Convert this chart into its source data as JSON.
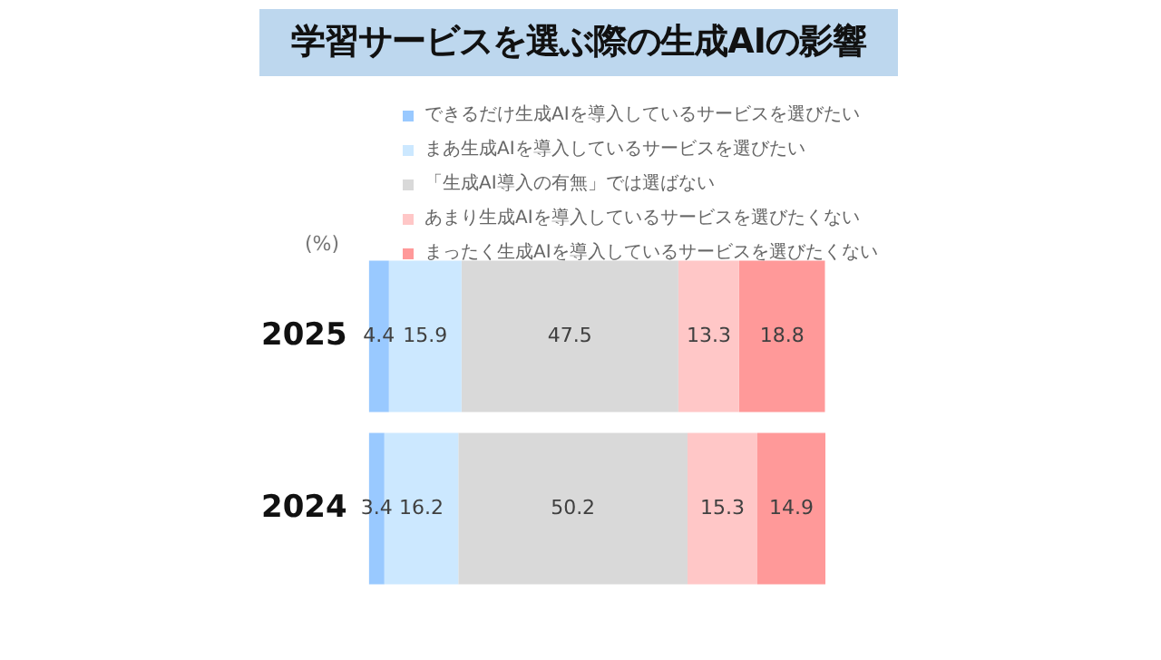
{
  "chart_data": {
    "type": "bar",
    "orientation": "horizontal",
    "stacked": true,
    "title": "学習サービスを選ぶ際の生成AIの影響",
    "annotations": [
      "(%)"
    ],
    "categories": [
      "2025",
      "2024"
    ],
    "series": [
      {
        "name": "できるだけ生成AIを導入しているサービスを選びたい",
        "color": "#99c9ff",
        "values": [
          4.4,
          3.4
        ]
      },
      {
        "name": "まあ生成AIを導入しているサービスを選びたい",
        "color": "#cce8ff",
        "values": [
          15.9,
          16.2
        ]
      },
      {
        "name": "「生成AI導入の有無」では選ばない",
        "color": "#d9d9d9",
        "values": [
          47.5,
          50.2
        ]
      },
      {
        "name": "あまり生成AIを導入しているサービスを選びたくない",
        "color": "#ffc7c7",
        "values": [
          13.3,
          15.3
        ]
      },
      {
        "name": "まったく生成AIを導入しているサービスを選びたくない",
        "color": "#ff9999",
        "values": [
          18.8,
          14.9
        ]
      }
    ],
    "xlim": [
      0,
      100
    ],
    "tick_labels": "y",
    "grid": false,
    "legend": "top",
    "data_labels": true
  }
}
